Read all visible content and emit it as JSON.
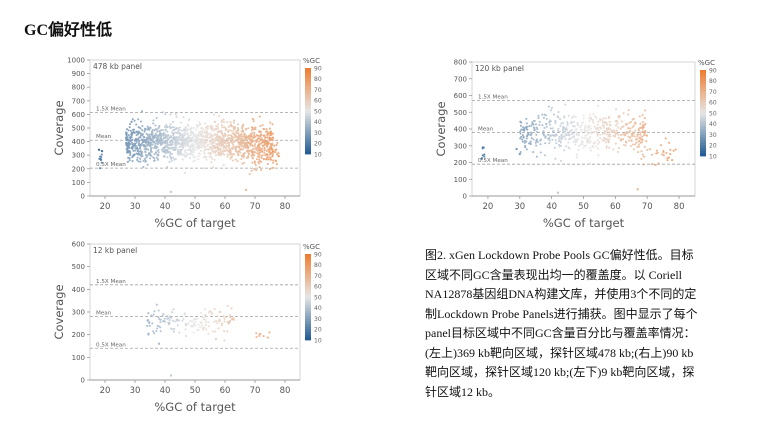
{
  "page": {
    "title": "GC偏好性低",
    "caption_lines": [
      "图2. xGen Lockdown Probe Pools GC偏好性低。目标",
      "区域不同GC含量表现出均一的覆盖度。以 Coriell",
      "NA12878基因组DNA构建文库，并使用3个不同的定",
      "制Lockdown Probe Panels进行捕获。图中显示了每个",
      "panel目标区域中不同GC含量百分比与覆盖率情况：",
      "(左上)369 kb靶向区域，探针区域478 kb;(右上)90 kb",
      "靶向区域，探针区域120 kb;(左下)9 kb靶向区域，探",
      "针区域12 kb。"
    ]
  },
  "colors": {
    "low_gc": "#1f5a91",
    "mid_gc": "#e6e6e6",
    "high_gc": "#ee7b2e",
    "reference_line": "#a0a0a0",
    "axis_text": "#555555"
  },
  "chart_data": [
    {
      "type": "scatter",
      "panel_label": "478 kb panel",
      "xlabel": "%GC of target",
      "ylabel": "Coverage",
      "xlim": [
        15,
        85
      ],
      "ylim": [
        0,
        1000
      ],
      "xticks": [
        20,
        30,
        40,
        50,
        60,
        70,
        80
      ],
      "yticks": [
        0,
        100,
        200,
        300,
        400,
        500,
        600,
        700,
        800,
        900,
        1000
      ],
      "reference_lines": [
        {
          "label": "1.5X Mean",
          "y": 615
        },
        {
          "label": "Mean",
          "y": 410
        },
        {
          "label": "0.5X Mean",
          "y": 205
        }
      ],
      "legend": {
        "title": "%GC",
        "ticks": [
          90,
          80,
          70,
          60,
          50,
          40,
          30,
          20,
          10
        ],
        "position": "right"
      },
      "gc_range": [
        10,
        90
      ],
      "clusters": [
        {
          "x0": 27,
          "x1": 76,
          "n": 1500,
          "mean": 400,
          "sd": 68
        },
        {
          "x0": 66,
          "x1": 78,
          "n": 60,
          "mean": 300,
          "sd": 50
        },
        {
          "x0": 18,
          "x1": 19,
          "n": 10,
          "mean": 270,
          "sd": 30
        }
      ],
      "outliers": [
        [
          42,
          30
        ],
        [
          67,
          45
        ],
        [
          18,
          340
        ],
        [
          19,
          330
        ]
      ]
    },
    {
      "type": "scatter",
      "panel_label": "120 kb panel",
      "xlabel": "%GC of target",
      "ylabel": "Coverage",
      "xlim": [
        15,
        85
      ],
      "ylim": [
        0,
        800
      ],
      "xticks": [
        20,
        30,
        40,
        50,
        60,
        70,
        80
      ],
      "yticks": [
        0,
        100,
        200,
        300,
        400,
        500,
        600,
        700,
        800
      ],
      "reference_lines": [
        {
          "label": "1.5X Mean",
          "y": 570
        },
        {
          "label": "Mean",
          "y": 380
        },
        {
          "label": "0.5X Mean",
          "y": 190
        }
      ],
      "legend": {
        "title": "%GC",
        "ticks": [
          90,
          80,
          70,
          60,
          50,
          40,
          30,
          20,
          10
        ],
        "position": "right"
      },
      "gc_range": [
        10,
        90
      ],
      "clusters": [
        {
          "x0": 30,
          "x1": 70,
          "n": 520,
          "mean": 380,
          "sd": 62
        },
        {
          "x0": 68,
          "x1": 80,
          "n": 30,
          "mean": 250,
          "sd": 35
        },
        {
          "x0": 18,
          "x1": 19,
          "n": 8,
          "mean": 260,
          "sd": 25
        }
      ],
      "outliers": [
        [
          42,
          20
        ],
        [
          67,
          40
        ],
        [
          29,
          280
        ],
        [
          30,
          250
        ]
      ]
    },
    {
      "type": "scatter",
      "panel_label": "12 kb panel",
      "xlabel": "%GC of target",
      "ylabel": "Coverage",
      "xlim": [
        15,
        85
      ],
      "ylim": [
        0,
        600
      ],
      "xticks": [
        20,
        30,
        40,
        50,
        60,
        70,
        80
      ],
      "yticks": [
        0,
        100,
        200,
        300,
        400,
        500,
        600
      ],
      "reference_lines": [
        {
          "label": "1.5X Mean",
          "y": 420
        },
        {
          "label": "Mean",
          "y": 280
        },
        {
          "label": "0.5X Mean",
          "y": 140
        }
      ],
      "legend": {
        "title": "%GC",
        "ticks": [
          90,
          80,
          70,
          60,
          50,
          40,
          30,
          20,
          10
        ],
        "position": "right"
      },
      "gc_range": [
        10,
        90
      ],
      "clusters": [
        {
          "x0": 33,
          "x1": 63,
          "n": 150,
          "mean": 260,
          "sd": 30
        },
        {
          "x0": 69,
          "x1": 75,
          "n": 8,
          "mean": 200,
          "sd": 10
        }
      ],
      "outliers": [
        [
          42,
          20
        ],
        [
          38,
          160
        ],
        [
          57,
          180
        ]
      ]
    }
  ]
}
